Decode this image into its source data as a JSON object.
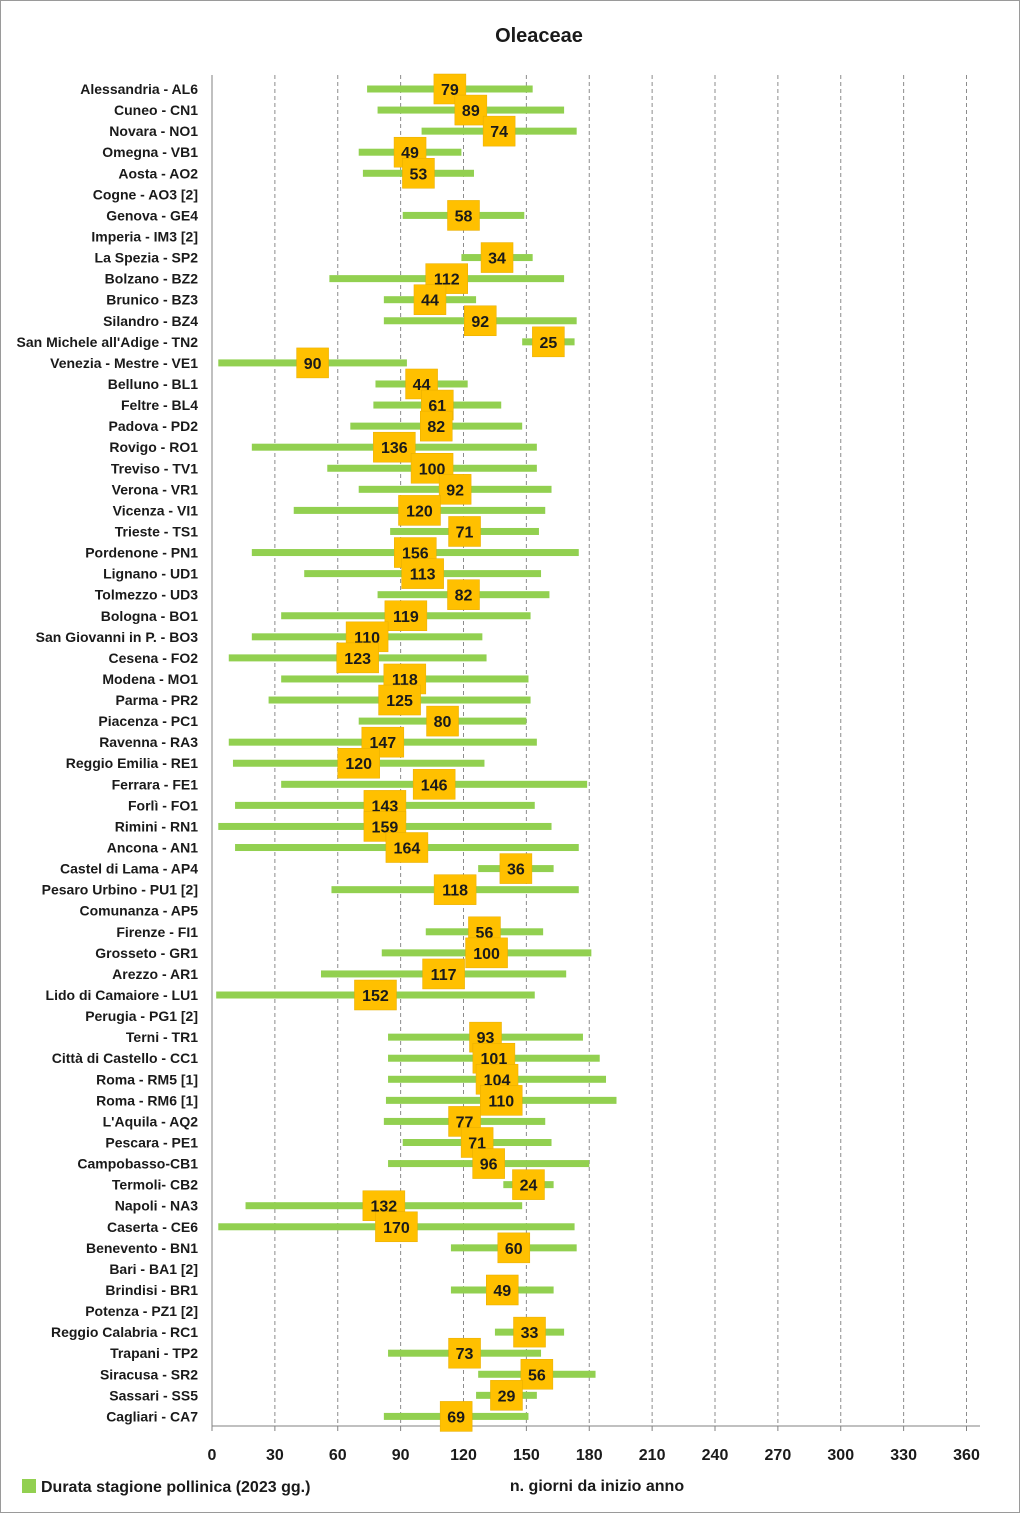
{
  "chart_data": {
    "type": "bar",
    "orientation": "horizontal-floating",
    "title": "Oleaceae",
    "xlabel": "n. giorni da inizio anno",
    "ylabel": "",
    "xlim": [
      0,
      365
    ],
    "xticks": [
      0,
      30,
      60,
      90,
      120,
      150,
      180,
      210,
      240,
      270,
      300,
      330,
      360
    ],
    "grid": "vertical dashed",
    "legend": {
      "position": "bottom-left",
      "entries": [
        {
          "name": "Durata stagione pollinica (2023 gg.)",
          "color": "#92d050"
        }
      ]
    },
    "colors": {
      "bar": "#92d050",
      "label_box": "#ffc000",
      "label_box_border": "#e6ac00"
    },
    "series": [
      {
        "name": "Durata stagione pollinica (2023 gg.)"
      }
    ],
    "stations": [
      {
        "name": "Alessandria - AL6",
        "start": 74,
        "end": 153,
        "duration": "79"
      },
      {
        "name": "Cuneo - CN1",
        "start": 79,
        "end": 168,
        "duration": "89"
      },
      {
        "name": "Novara - NO1",
        "start": 100,
        "end": 174,
        "duration": "74"
      },
      {
        "name": "Omegna - VB1",
        "start": 70,
        "end": 119,
        "duration": "49"
      },
      {
        "name": "Aosta - AO2",
        "start": 72,
        "end": 125,
        "duration": "53"
      },
      {
        "name": "Cogne - AO3 [2]",
        "start": null,
        "end": null,
        "duration": ""
      },
      {
        "name": "Genova - GE4",
        "start": 91,
        "end": 149,
        "duration": "58"
      },
      {
        "name": "Imperia - IM3 [2]",
        "start": null,
        "end": null,
        "duration": ""
      },
      {
        "name": "La Spezia - SP2",
        "start": 119,
        "end": 153,
        "duration": "34"
      },
      {
        "name": "Bolzano - BZ2",
        "start": 56,
        "end": 168,
        "duration": "112"
      },
      {
        "name": "Brunico - BZ3",
        "start": 82,
        "end": 126,
        "duration": "44"
      },
      {
        "name": "Silandro - BZ4",
        "start": 82,
        "end": 174,
        "duration": "92"
      },
      {
        "name": "San Michele all'Adige - TN2",
        "start": 148,
        "end": 173,
        "duration": "25"
      },
      {
        "name": "Venezia - Mestre - VE1",
        "start": 3,
        "end": 93,
        "duration": "90"
      },
      {
        "name": "Belluno - BL1",
        "start": 78,
        "end": 122,
        "duration": "44"
      },
      {
        "name": "Feltre - BL4",
        "start": 77,
        "end": 138,
        "duration": "61"
      },
      {
        "name": "Padova - PD2",
        "start": 66,
        "end": 148,
        "duration": "82"
      },
      {
        "name": "Rovigo - RO1",
        "start": 19,
        "end": 155,
        "duration": "136"
      },
      {
        "name": "Treviso - TV1",
        "start": 55,
        "end": 155,
        "duration": "100"
      },
      {
        "name": "Verona - VR1",
        "start": 70,
        "end": 162,
        "duration": "92"
      },
      {
        "name": "Vicenza - VI1",
        "start": 39,
        "end": 159,
        "duration": "120"
      },
      {
        "name": "Trieste - TS1",
        "start": 85,
        "end": 156,
        "duration": "71"
      },
      {
        "name": "Pordenone - PN1",
        "start": 19,
        "end": 175,
        "duration": "156"
      },
      {
        "name": "Lignano - UD1",
        "start": 44,
        "end": 157,
        "duration": "113"
      },
      {
        "name": "Tolmezzo - UD3",
        "start": 79,
        "end": 161,
        "duration": "82"
      },
      {
        "name": "Bologna - BO1",
        "start": 33,
        "end": 152,
        "duration": "119"
      },
      {
        "name": "San Giovanni in P. - BO3",
        "start": 19,
        "end": 129,
        "duration": "110"
      },
      {
        "name": "Cesena - FO2",
        "start": 8,
        "end": 131,
        "duration": "123"
      },
      {
        "name": "Modena - MO1",
        "start": 33,
        "end": 151,
        "duration": "118"
      },
      {
        "name": "Parma - PR2",
        "start": 27,
        "end": 152,
        "duration": "125"
      },
      {
        "name": "Piacenza - PC1",
        "start": 70,
        "end": 150,
        "duration": "80"
      },
      {
        "name": "Ravenna - RA3",
        "start": 8,
        "end": 155,
        "duration": "147"
      },
      {
        "name": "Reggio Emilia - RE1",
        "start": 10,
        "end": 130,
        "duration": "120"
      },
      {
        "name": "Ferrara - FE1",
        "start": 33,
        "end": 179,
        "duration": "146"
      },
      {
        "name": "Forlì - FO1",
        "start": 11,
        "end": 154,
        "duration": "143"
      },
      {
        "name": "Rimini - RN1",
        "start": 3,
        "end": 162,
        "duration": "159"
      },
      {
        "name": "Ancona - AN1",
        "start": 11,
        "end": 175,
        "duration": "164"
      },
      {
        "name": "Castel di Lama - AP4",
        "start": 127,
        "end": 163,
        "duration": "36"
      },
      {
        "name": "Pesaro Urbino - PU1 [2]",
        "start": 57,
        "end": 175,
        "duration": "118"
      },
      {
        "name": "Comunanza - AP5",
        "start": null,
        "end": null,
        "duration": ""
      },
      {
        "name": "Firenze - FI1",
        "start": 102,
        "end": 158,
        "duration": "56"
      },
      {
        "name": "Grosseto - GR1",
        "start": 81,
        "end": 181,
        "duration": "100"
      },
      {
        "name": "Arezzo - AR1",
        "start": 52,
        "end": 169,
        "duration": "117"
      },
      {
        "name": "Lido di Camaiore - LU1",
        "start": 2,
        "end": 154,
        "duration": "152"
      },
      {
        "name": "Perugia - PG1 [2]",
        "start": null,
        "end": null,
        "duration": ""
      },
      {
        "name": "Terni - TR1",
        "start": 84,
        "end": 177,
        "duration": "93"
      },
      {
        "name": "Città di Castello - CC1",
        "start": 84,
        "end": 185,
        "duration": "101"
      },
      {
        "name": "Roma - RM5 [1]",
        "start": 84,
        "end": 188,
        "duration": "104"
      },
      {
        "name": "Roma - RM6 [1]",
        "start": 83,
        "end": 193,
        "duration": "110"
      },
      {
        "name": "L'Aquila - AQ2",
        "start": 82,
        "end": 159,
        "duration": "77"
      },
      {
        "name": "Pescara - PE1",
        "start": 91,
        "end": 162,
        "duration": "71"
      },
      {
        "name": "Campobasso-CB1",
        "start": 84,
        "end": 180,
        "duration": "96"
      },
      {
        "name": "Termoli- CB2",
        "start": 139,
        "end": 163,
        "duration": "24"
      },
      {
        "name": "Napoli - NA3",
        "start": 16,
        "end": 148,
        "duration": "132"
      },
      {
        "name": "Caserta - CE6",
        "start": 3,
        "end": 173,
        "duration": "170"
      },
      {
        "name": "Benevento  - BN1",
        "start": 114,
        "end": 174,
        "duration": "60"
      },
      {
        "name": "Bari - BA1 [2]",
        "start": null,
        "end": null,
        "duration": ""
      },
      {
        "name": "Brindisi - BR1",
        "start": 114,
        "end": 163,
        "duration": "49"
      },
      {
        "name": "Potenza - PZ1 [2]",
        "start": null,
        "end": null,
        "duration": ""
      },
      {
        "name": "Reggio Calabria - RC1",
        "start": 135,
        "end": 168,
        "duration": "33"
      },
      {
        "name": "Trapani - TP2",
        "start": 84,
        "end": 157,
        "duration": "73"
      },
      {
        "name": "Siracusa - SR2",
        "start": 127,
        "end": 183,
        "duration": "56"
      },
      {
        "name": "Sassari - SS5",
        "start": 126,
        "end": 155,
        "duration": "29"
      },
      {
        "name": "Cagliari - CA7",
        "start": 82,
        "end": 151,
        "duration": "69"
      }
    ]
  }
}
